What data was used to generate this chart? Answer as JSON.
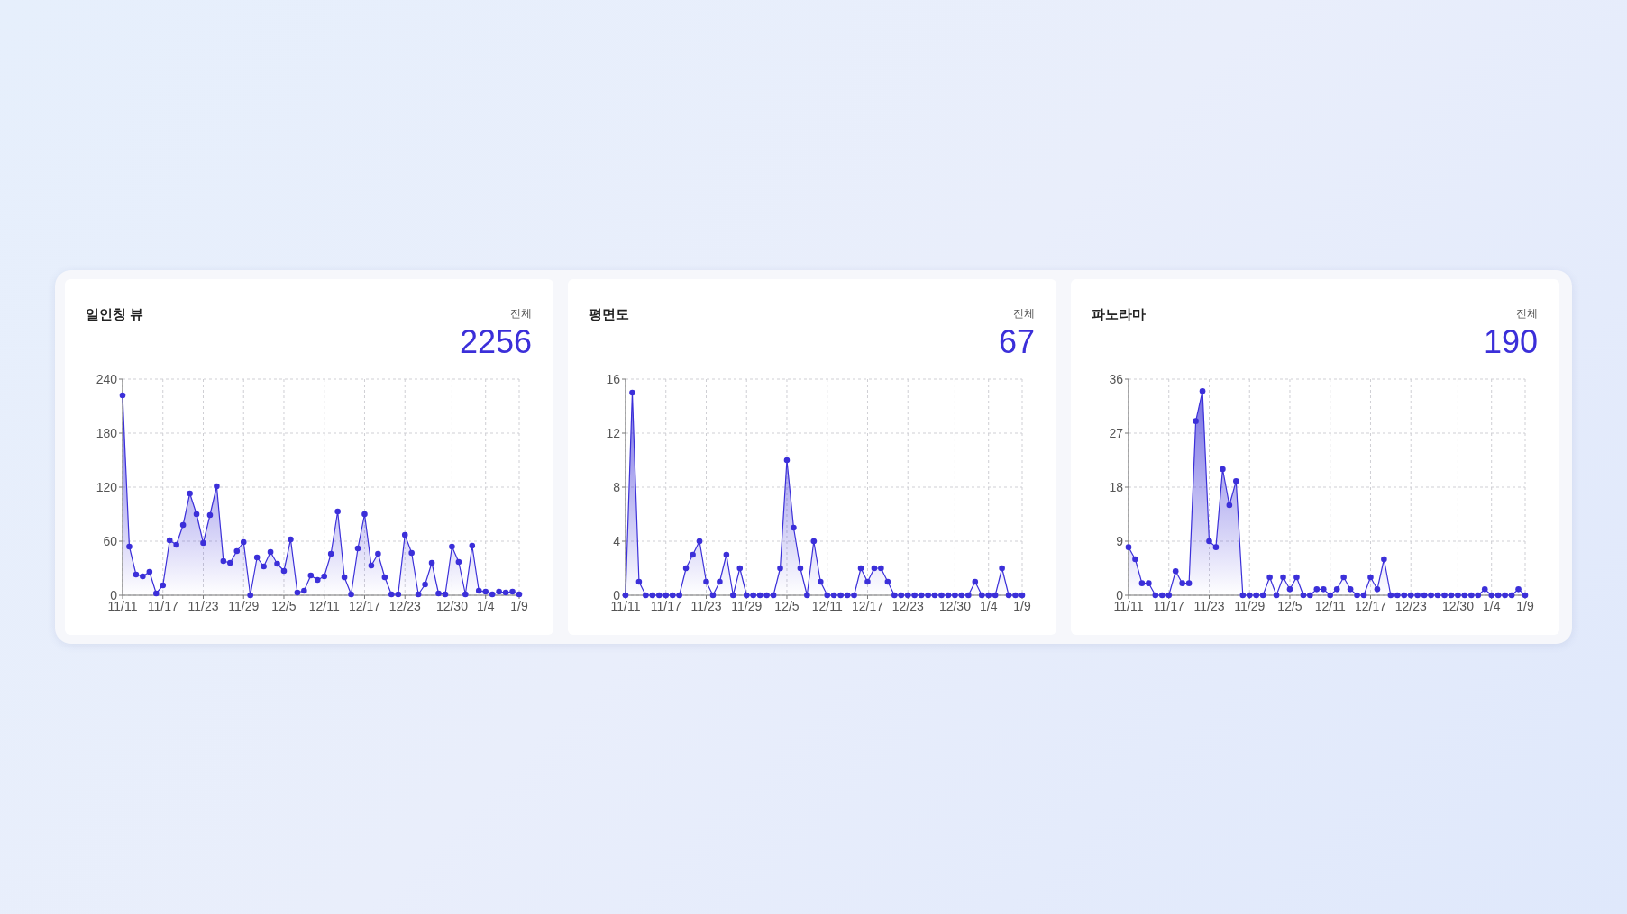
{
  "chart_data": [
    {
      "type": "area",
      "title": "일인칭 뷰",
      "annotations": [
        "전체",
        "2256"
      ],
      "categories": [
        "11/11",
        null,
        null,
        null,
        null,
        null,
        "11/17",
        null,
        null,
        null,
        null,
        null,
        "11/23",
        null,
        null,
        null,
        null,
        null,
        "11/29",
        null,
        null,
        null,
        null,
        null,
        "12/5",
        null,
        null,
        null,
        null,
        null,
        "12/11",
        null,
        null,
        null,
        null,
        null,
        "12/17",
        null,
        null,
        null,
        null,
        null,
        "12/23",
        null,
        null,
        null,
        null,
        null,
        null,
        "12/30",
        null,
        null,
        null,
        null,
        "1/4",
        null,
        null,
        null,
        null,
        "1/9"
      ],
      "values": [
        222,
        54,
        23,
        21,
        26,
        2,
        11,
        61,
        56,
        78,
        113,
        90,
        58,
        89,
        121,
        38,
        36,
        49,
        59,
        0,
        42,
        32,
        48,
        35,
        27,
        62,
        3,
        5,
        22,
        17,
        21,
        46,
        93,
        20,
        1,
        52,
        90,
        33,
        46,
        20,
        1,
        1,
        67,
        47,
        1,
        12,
        36,
        2,
        1,
        54,
        37,
        1,
        55,
        5,
        4,
        1,
        4,
        3,
        4,
        1
      ],
      "color": "#3b2fd9",
      "ylim": [
        0,
        240
      ],
      "yticks": [
        0,
        60,
        120,
        180,
        240
      ],
      "grid": true,
      "marker": "circle",
      "line_style": "solid"
    },
    {
      "type": "area",
      "title": "평면도",
      "annotations": [
        "전체",
        "67"
      ],
      "categories": [
        "11/11",
        null,
        null,
        null,
        null,
        null,
        "11/17",
        null,
        null,
        null,
        null,
        null,
        "11/23",
        null,
        null,
        null,
        null,
        null,
        "11/29",
        null,
        null,
        null,
        null,
        null,
        "12/5",
        null,
        null,
        null,
        null,
        null,
        "12/11",
        null,
        null,
        null,
        null,
        null,
        "12/17",
        null,
        null,
        null,
        null,
        null,
        "12/23",
        null,
        null,
        null,
        null,
        null,
        null,
        "12/30",
        null,
        null,
        null,
        null,
        "1/4",
        null,
        null,
        null,
        null,
        "1/9"
      ],
      "values": [
        0,
        15,
        1,
        0,
        0,
        0,
        0,
        0,
        0,
        2,
        3,
        4,
        1,
        0,
        1,
        3,
        0,
        2,
        0,
        0,
        0,
        0,
        0,
        2,
        10,
        5,
        2,
        0,
        4,
        1,
        0,
        0,
        0,
        0,
        0,
        2,
        1,
        2,
        2,
        1,
        0,
        0,
        0,
        0,
        0,
        0,
        0,
        0,
        0,
        0,
        0,
        0,
        1,
        0,
        0,
        0,
        2,
        0,
        0,
        0
      ],
      "color": "#3b2fd9",
      "ylim": [
        0,
        16
      ],
      "yticks": [
        0,
        4,
        8,
        12,
        16
      ],
      "grid": true,
      "marker": "circle",
      "line_style": "solid"
    },
    {
      "type": "area",
      "title": "파노라마",
      "annotations": [
        "전체",
        "190"
      ],
      "categories": [
        "11/11",
        null,
        null,
        null,
        null,
        null,
        "11/17",
        null,
        null,
        null,
        null,
        null,
        "11/23",
        null,
        null,
        null,
        null,
        null,
        "11/29",
        null,
        null,
        null,
        null,
        null,
        "12/5",
        null,
        null,
        null,
        null,
        null,
        "12/11",
        null,
        null,
        null,
        null,
        null,
        "12/17",
        null,
        null,
        null,
        null,
        null,
        "12/23",
        null,
        null,
        null,
        null,
        null,
        null,
        "12/30",
        null,
        null,
        null,
        null,
        "1/4",
        null,
        null,
        null,
        null,
        "1/9"
      ],
      "values": [
        8,
        6,
        2,
        2,
        0,
        0,
        0,
        4,
        2,
        2,
        29,
        34,
        9,
        8,
        21,
        15,
        19,
        0,
        0,
        0,
        0,
        3,
        0,
        3,
        1,
        3,
        0,
        0,
        1,
        1,
        0,
        1,
        3,
        1,
        0,
        0,
        3,
        1,
        6,
        0,
        0,
        0,
        0,
        0,
        0,
        0,
        0,
        0,
        0,
        0,
        0,
        0,
        0,
        1,
        0,
        0,
        0,
        0,
        1,
        0
      ],
      "color": "#3b2fd9",
      "ylim": [
        0,
        36
      ],
      "yticks": [
        0,
        9,
        18,
        27,
        36
      ],
      "grid": true,
      "marker": "circle",
      "line_style": "solid"
    }
  ]
}
